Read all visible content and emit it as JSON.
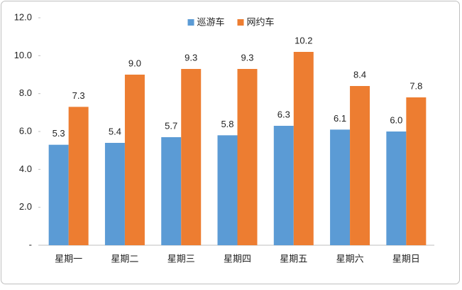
{
  "chart_data": {
    "type": "bar",
    "categories": [
      "星期一",
      "星期二",
      "星期三",
      "星期四",
      "星期五",
      "星期六",
      "星期日"
    ],
    "series": [
      {
        "name": "巡游车",
        "color": "#5b9bd5",
        "values": [
          5.3,
          5.4,
          5.7,
          5.8,
          6.3,
          6.1,
          6.0
        ],
        "value_labels": [
          "5.3",
          "5.4",
          "5.7",
          "5.8",
          "6.3",
          "6.1",
          "6.0"
        ]
      },
      {
        "name": "网约车",
        "color": "#ed7d31",
        "values": [
          7.3,
          9.0,
          9.3,
          9.3,
          10.2,
          8.4,
          7.8
        ],
        "value_labels": [
          "7.3",
          "9.0",
          "9.3",
          "9.3",
          "10.2",
          "8.4",
          "7.8"
        ]
      }
    ],
    "ylim": [
      0,
      12
    ],
    "yticks": [
      {
        "value": 0,
        "label": "-"
      },
      {
        "value": 2,
        "label": "2.0"
      },
      {
        "value": 4,
        "label": "4.0"
      },
      {
        "value": 6,
        "label": "6.0"
      },
      {
        "value": 8,
        "label": "8.0"
      },
      {
        "value": 10,
        "label": "10.0"
      },
      {
        "value": 12,
        "label": "12.0"
      }
    ],
    "legend": "top"
  }
}
